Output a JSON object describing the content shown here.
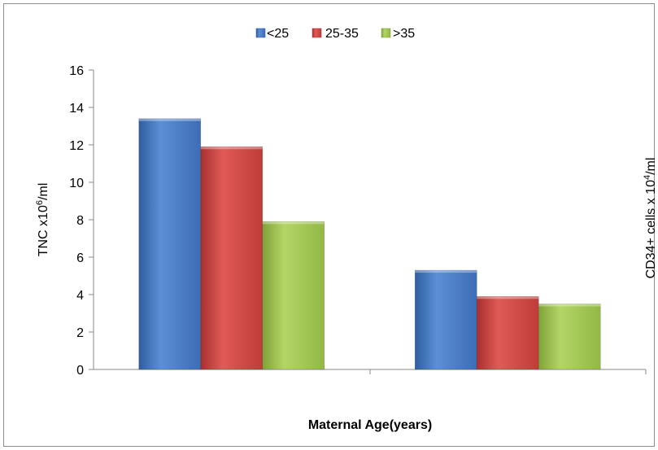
{
  "chart_data": {
    "type": "bar",
    "title": "",
    "xlabel": "Maternal Age(years)",
    "ylabel": {
      "prefix": "TNC x10",
      "exp": "6",
      "suffix": "/ml"
    },
    "y2label": {
      "prefix": "CD34+ cells x  10",
      "exp": "4",
      "suffix": "/ml"
    },
    "ylim": [
      0,
      16
    ],
    "yticks": [
      0,
      2,
      4,
      6,
      8,
      10,
      12,
      14,
      16
    ],
    "legend_position": "top-center",
    "series_names": [
      "<25",
      "25-35",
      ">35"
    ],
    "series_colors": [
      "#4a7ec8",
      "#d24a48",
      "#a2c64e"
    ],
    "groups": [
      {
        "values": [
          13.4,
          11.9,
          7.9
        ]
      },
      {
        "values": [
          5.3,
          3.9,
          3.5
        ]
      }
    ]
  }
}
